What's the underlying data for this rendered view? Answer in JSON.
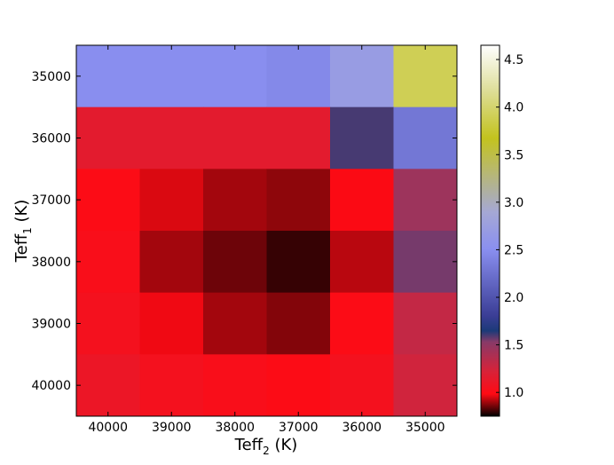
{
  "chart_data": {
    "type": "heatmap",
    "title": "",
    "xlabel": {
      "base": "Teff",
      "sub": "2",
      "unit": " (K)"
    },
    "ylabel": {
      "base": "Teff",
      "sub": "1",
      "unit": " (K)"
    },
    "x_categories": [
      "40000",
      "39000",
      "38000",
      "37000",
      "36000",
      "35000"
    ],
    "y_categories": [
      "35000",
      "36000",
      "37000",
      "38000",
      "39000",
      "40000"
    ],
    "colorbar": {
      "min": 0.75,
      "max": 4.65,
      "ticks": [
        "1.0",
        "1.5",
        "2.0",
        "2.5",
        "3.0",
        "3.5",
        "4.0",
        "4.5"
      ],
      "colormap": "gist_stern-like: black - red - dark blue - light blue - olive/yellow - white"
    },
    "values": [
      [
        2.5,
        2.5,
        2.5,
        2.45,
        2.7,
        3.9
      ],
      [
        1.15,
        1.15,
        1.15,
        1.15,
        1.6,
        2.3
      ],
      [
        1.0,
        0.95,
        0.9,
        0.88,
        0.98,
        1.45
      ],
      [
        1.02,
        0.9,
        0.85,
        0.8,
        0.92,
        1.55
      ],
      [
        1.05,
        0.97,
        0.9,
        0.87,
        1.0,
        1.3
      ],
      [
        1.1,
        1.05,
        1.02,
        1.0,
        1.05,
        1.25
      ]
    ]
  }
}
